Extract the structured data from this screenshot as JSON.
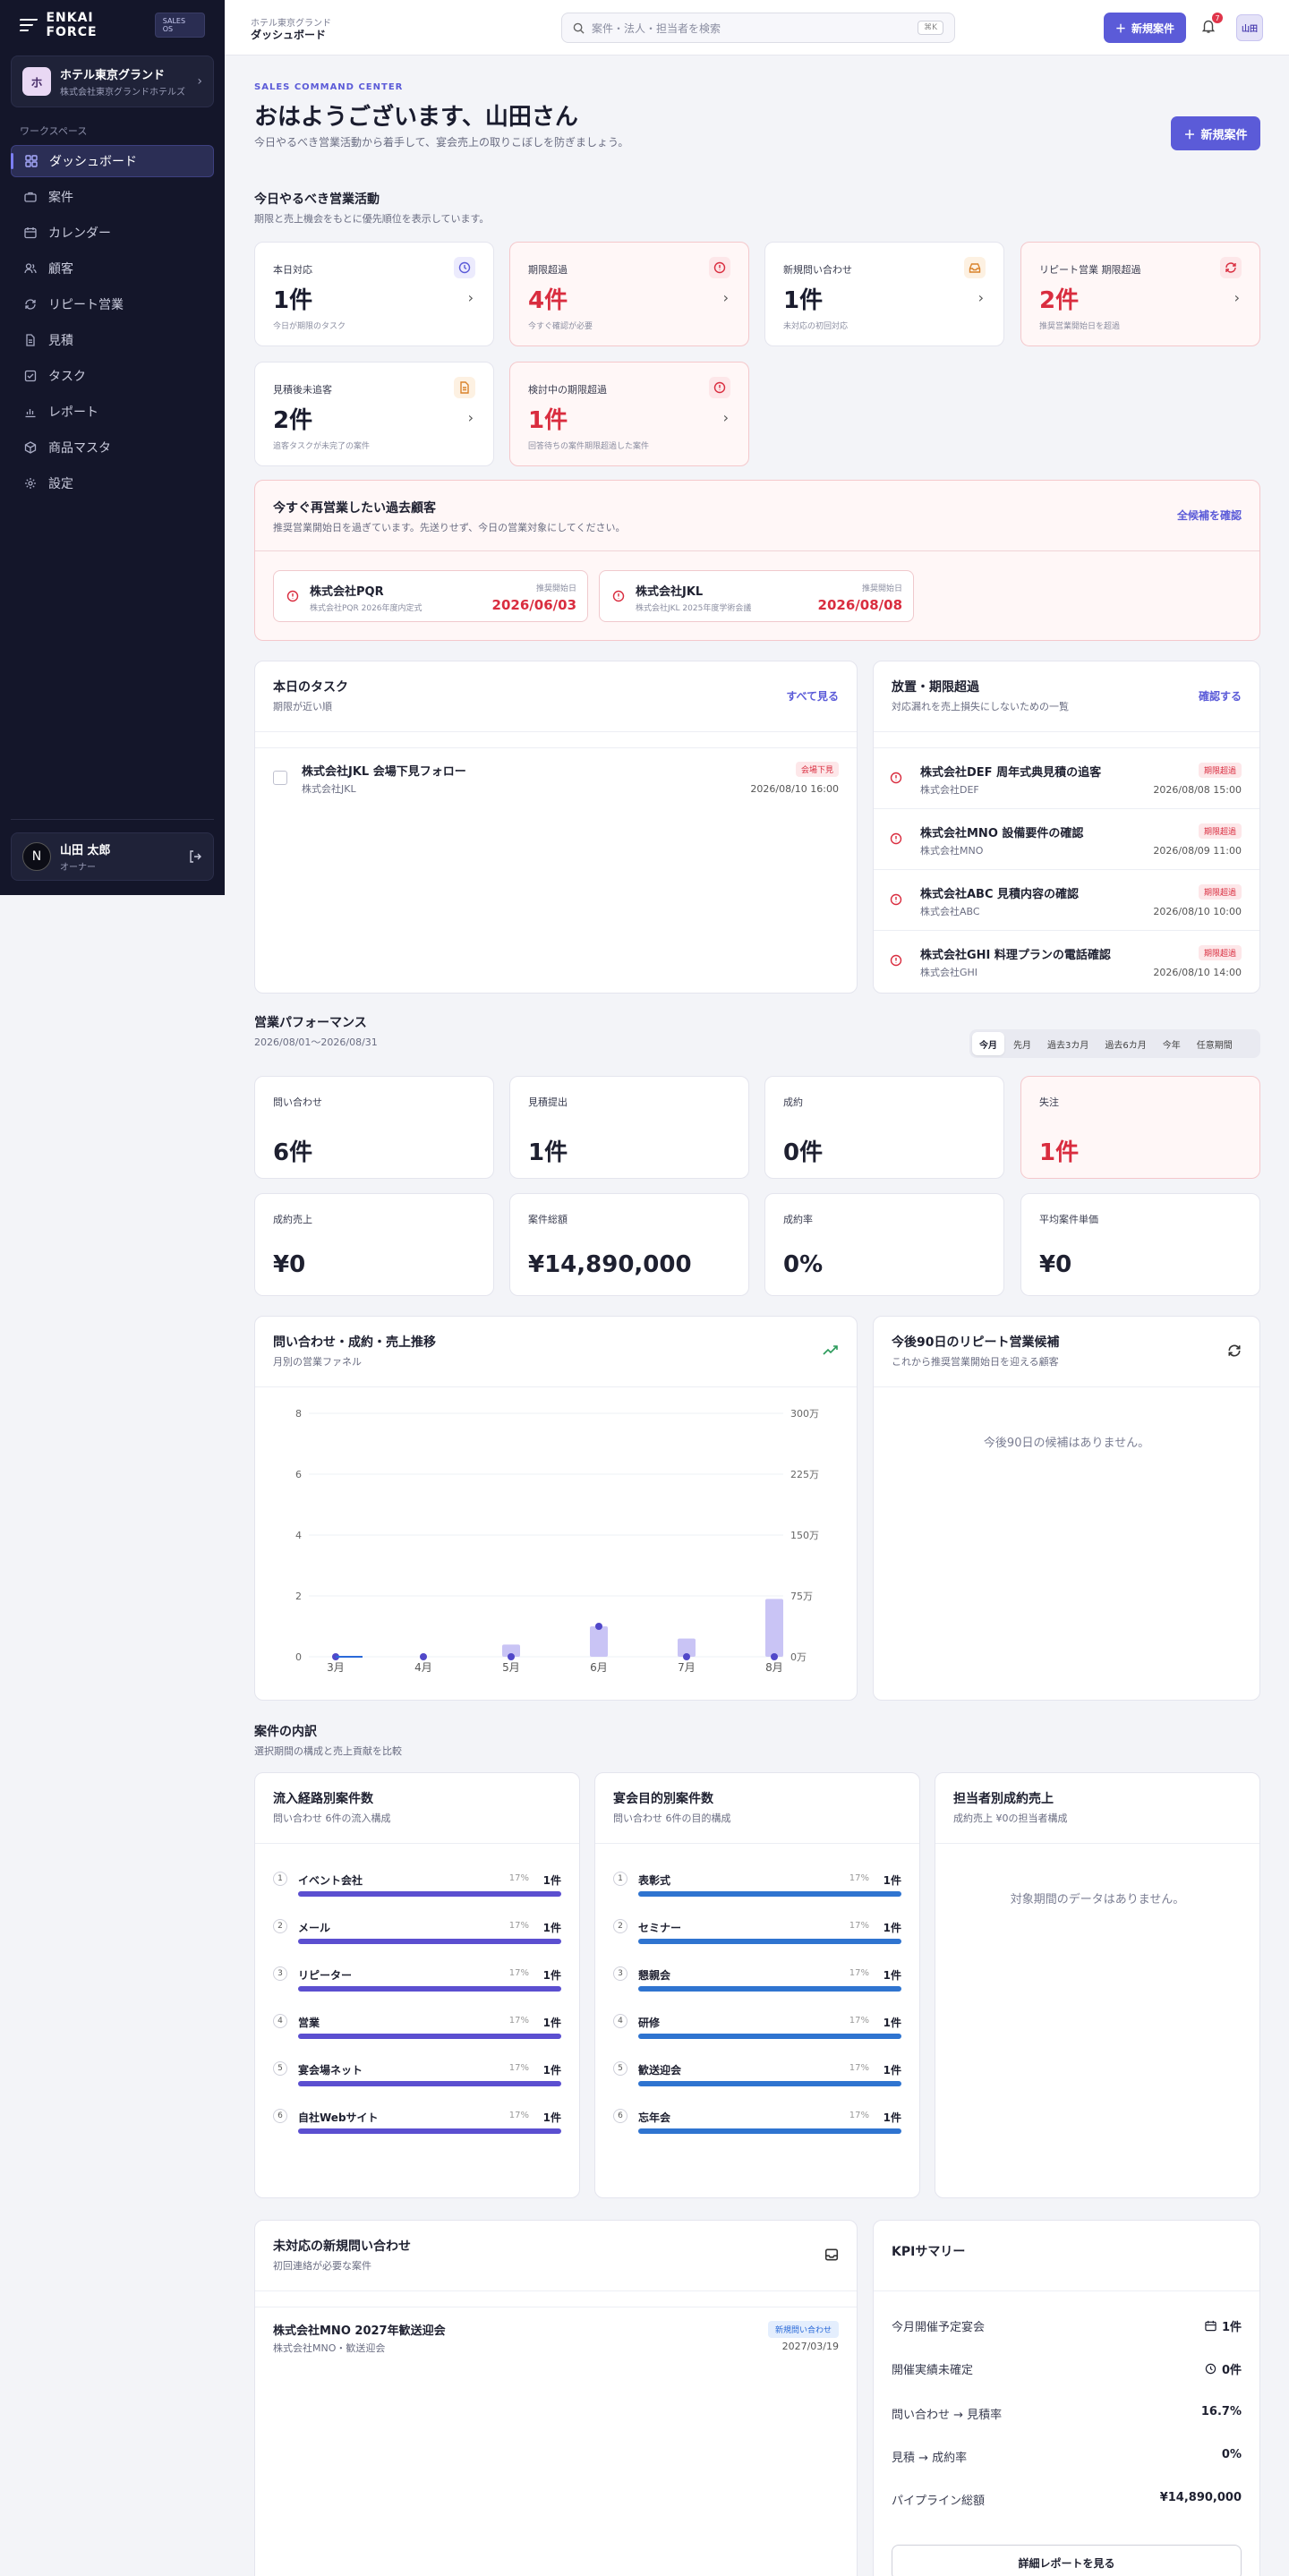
{
  "brand": {
    "name": "ENKAI FORCE",
    "badge": "SALES OS"
  },
  "tenant": {
    "initial": "ホ",
    "name": "ホテル東京グランド",
    "sub": "株式会社東京グランドホテルズ"
  },
  "sidebar": {
    "section_label": "ワークスペース",
    "items": [
      {
        "label": "ダッシュボード",
        "icon": "dashboard-icon",
        "active": true
      },
      {
        "label": "案件",
        "icon": "briefcase-icon"
      },
      {
        "label": "カレンダー",
        "icon": "calendar-icon"
      },
      {
        "label": "顧客",
        "icon": "users-icon"
      },
      {
        "label": "リピート営業",
        "icon": "repeat-icon"
      },
      {
        "label": "見積",
        "icon": "document-icon"
      },
      {
        "label": "タスク",
        "icon": "task-icon"
      },
      {
        "label": "レポート",
        "icon": "report-icon"
      },
      {
        "label": "商品マスタ",
        "icon": "package-icon"
      },
      {
        "label": "設定",
        "icon": "gear-icon"
      }
    ]
  },
  "user": {
    "initial": "N",
    "name": "山田 太郎",
    "role": "オーナー"
  },
  "topbar": {
    "hotel": "ホテル東京グランド",
    "page": "ダッシュボード",
    "search_placeholder": "案件・法人・担当者を検索",
    "shortcut": "⌘K",
    "new_button": "新規案件",
    "notification_count": "7",
    "avatar": "山田"
  },
  "header": {
    "eyebrow": "SALES COMMAND CENTER",
    "title": "おはようございます、山田さん",
    "subtitle": "今日やるべき営業活動から着手して、宴会売上の取りこぼしを防ぎましょう。",
    "new_button": "新規案件"
  },
  "today": {
    "title": "今日やるべき営業活動",
    "subtitle": "期限と売上機会をもとに優先順位を表示しています。",
    "cards": [
      {
        "label": "本日対応",
        "value": "1件",
        "desc": "今日が期限のタスク",
        "icon": "clock-icon",
        "tone": "normal"
      },
      {
        "label": "期限超過",
        "value": "4件",
        "desc": "今すぐ確認が必要",
        "icon": "alert-icon",
        "tone": "alert"
      },
      {
        "label": "新規問い合わせ",
        "value": "1件",
        "desc": "未対応の初回対応",
        "icon": "inbox-icon",
        "tone": "normal"
      },
      {
        "label": "リピート営業 期限超過",
        "value": "2件",
        "desc": "推奨営業開始日を超過",
        "icon": "refresh-icon",
        "tone": "alert"
      },
      {
        "label": "見積後未追客",
        "value": "2件",
        "desc": "追客タスクが未完了の案件",
        "icon": "document-icon",
        "tone": "normal"
      },
      {
        "label": "検討中の期限超過",
        "value": "1件",
        "desc": "回答待ちの案件期限超過した案件",
        "icon": "alert-icon",
        "tone": "alert"
      }
    ]
  },
  "past_customers": {
    "title": "今すぐ再営業したい過去顧客",
    "subtitle": "推奨営業開始日を過ぎています。先送りせず、今日の営業対象にしてください。",
    "link": "全候補を確認",
    "items": [
      {
        "name": "株式会社PQR",
        "sub": "株式会社PQR 2026年度内定式",
        "date_label": "推奨開始日",
        "date": "2026/06/03"
      },
      {
        "name": "株式会社JKL",
        "sub": "株式会社JKL 2025年度学術会議",
        "date_label": "推奨開始日",
        "date": "2026/08/08"
      }
    ]
  },
  "tasks": {
    "title": "本日のタスク",
    "subtitle": "期限が近い順",
    "link": "すべて見る",
    "items": [
      {
        "name": "株式会社JKL 会場下見フォロー",
        "sub": "株式会社JKL",
        "badge": "会場下見",
        "date": "2026/08/10 16:00"
      }
    ]
  },
  "overdue": {
    "title": "放置・期限超過",
    "subtitle": "対応漏れを売上損失にしないための一覧",
    "link": "確認する",
    "items": [
      {
        "name": "株式会社DEF 周年式典見積の追客",
        "sub": "株式会社DEF",
        "badge": "期限超過",
        "date": "2026/08/08 15:00"
      },
      {
        "name": "株式会社MNO 設備要件の確認",
        "sub": "株式会社MNO",
        "badge": "期限超過",
        "date": "2026/08/09 11:00"
      },
      {
        "name": "株式会社ABC 見積内容の確認",
        "sub": "株式会社ABC",
        "badge": "期限超過",
        "date": "2026/08/10 10:00"
      },
      {
        "name": "株式会社GHI 料理プランの電話確認",
        "sub": "株式会社GHI",
        "badge": "期限超過",
        "date": "2026/08/10 14:00"
      }
    ]
  },
  "performance": {
    "title": "営業パフォーマンス",
    "range": "2026/08/01〜2026/08/31",
    "tabs": [
      "今月",
      "先月",
      "過去3カ月",
      "過去6カ月",
      "今年",
      "任意期間"
    ],
    "active_tab": 0,
    "metrics": [
      {
        "label": "問い合わせ",
        "value": "6件",
        "tone": "normal"
      },
      {
        "label": "見積提出",
        "value": "1件",
        "tone": "normal"
      },
      {
        "label": "成約",
        "value": "0件",
        "tone": "normal"
      },
      {
        "label": "失注",
        "value": "1件",
        "tone": "alert"
      },
      {
        "label": "成約売上",
        "value": "¥0",
        "tone": "normal"
      },
      {
        "label": "案件総額",
        "value": "¥14,890,000",
        "tone": "normal"
      },
      {
        "label": "成約率",
        "value": "0%",
        "tone": "normal"
      },
      {
        "label": "平均案件単価",
        "value": "¥0",
        "tone": "normal"
      }
    ]
  },
  "trend": {
    "title": "問い合わせ・成約・売上推移",
    "subtitle": "月別の営業ファネル",
    "icon": "trend-up-icon"
  },
  "chart_data": {
    "type": "bar",
    "categories": [
      "3月",
      "4月",
      "5月",
      "6月",
      "7月",
      "8月"
    ],
    "left_ticks": [
      "0",
      "2",
      "4",
      "6",
      "8"
    ],
    "right_ticks": [
      "0万",
      "75万",
      "150万",
      "225万",
      "300万"
    ],
    "ylim_left": [
      0,
      8
    ],
    "ylim_right": [
      0,
      300
    ],
    "series": [
      {
        "values": [
          0,
          0,
          0.4,
          1,
          0.6,
          1.9
        ],
        "color": "#c9c4f5"
      },
      {
        "values": [
          0,
          0,
          0,
          1,
          0,
          0
        ],
        "color": "#5148c9"
      },
      {
        "values": [
          0,
          null,
          null,
          null,
          null,
          null
        ],
        "color": "#2a6ad9"
      }
    ]
  },
  "repeat": {
    "title": "今後90日のリピート営業候補",
    "subtitle": "これから推奨営業開始日を迎える顧客",
    "empty": "今後90日の候補はありません。",
    "icon": "refresh-icon"
  },
  "breakdown": {
    "title": "案件の内訳",
    "subtitle": "選択期間の構成と売上貢献を比較",
    "channel": {
      "title": "流入経路別案件数",
      "subtitle": "問い合わせ 6件の流入構成",
      "color": "#5b4fd0",
      "items": [
        {
          "num": "1",
          "name": "イベント会社",
          "pct": "17%",
          "count": "1件",
          "ratio": 1
        },
        {
          "num": "2",
          "name": "メール",
          "pct": "17%",
          "count": "1件",
          "ratio": 1
        },
        {
          "num": "3",
          "name": "リピーター",
          "pct": "17%",
          "count": "1件",
          "ratio": 1
        },
        {
          "num": "4",
          "name": "営業",
          "pct": "17%",
          "count": "1件",
          "ratio": 1
        },
        {
          "num": "5",
          "name": "宴会場ネット",
          "pct": "17%",
          "count": "1件",
          "ratio": 1
        },
        {
          "num": "6",
          "name": "自社Webサイト",
          "pct": "17%",
          "count": "1件",
          "ratio": 1
        }
      ]
    },
    "purpose": {
      "title": "宴会目的別案件数",
      "subtitle": "問い合わせ 6件の目的構成",
      "color": "#2f74d0",
      "items": [
        {
          "num": "1",
          "name": "表彰式",
          "pct": "17%",
          "count": "1件",
          "ratio": 1
        },
        {
          "num": "2",
          "name": "セミナー",
          "pct": "17%",
          "count": "1件",
          "ratio": 1
        },
        {
          "num": "3",
          "name": "懇親会",
          "pct": "17%",
          "count": "1件",
          "ratio": 1
        },
        {
          "num": "4",
          "name": "研修",
          "pct": "17%",
          "count": "1件",
          "ratio": 1
        },
        {
          "num": "5",
          "name": "歓送迎会",
          "pct": "17%",
          "count": "1件",
          "ratio": 1
        },
        {
          "num": "6",
          "name": "忘年会",
          "pct": "17%",
          "count": "1件",
          "ratio": 1
        }
      ]
    },
    "staff": {
      "title": "担当者別成約売上",
      "subtitle": "成約売上 ¥0の担当者構成",
      "empty": "対象期間のデータはありません。"
    }
  },
  "inquiries": {
    "title": "未対応の新規問い合わせ",
    "subtitle": "初回連絡が必要な案件",
    "item": {
      "name": "株式会社MNO 2027年歓送迎会",
      "sub": "株式会社MNO・歓送迎会",
      "badge": "新規問い合わせ",
      "date": "2027/03/19"
    }
  },
  "kpi": {
    "title": "KPIサマリー",
    "rows": [
      {
        "label": "今月開催予定宴会",
        "value": "1件",
        "icon": "calendar-icon"
      },
      {
        "label": "開催実績未確定",
        "value": "0件",
        "icon": "clock-icon"
      },
      {
        "label": "問い合わせ → 見積率",
        "value": "16.7%"
      },
      {
        "label": "見積 → 成約率",
        "value": "0%"
      },
      {
        "label": "パイプライン総額",
        "value": "¥14,890,000"
      }
    ],
    "button": "詳細レポートを見る"
  }
}
